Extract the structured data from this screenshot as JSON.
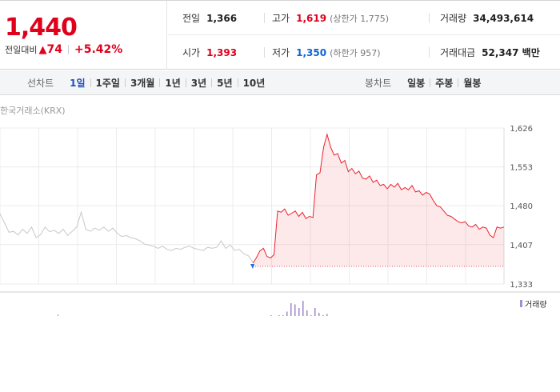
{
  "quote": {
    "price": "1,440",
    "change_label": "전일대비",
    "change_value": "74",
    "change_rate": "+5.42%",
    "up_color": "#e0001b",
    "down_color": "#1064d4"
  },
  "info": {
    "prev_close_label": "전일",
    "prev_close": "1,366",
    "high_label": "고가",
    "high": "1,619",
    "upper_limit": "(상한가 1,775)",
    "volume_label": "거래량",
    "volume": "34,493,614",
    "open_label": "시가",
    "open": "1,393",
    "low_label": "저가",
    "low": "1,350",
    "lower_limit": "(하한가 957)",
    "value_label": "거래대금",
    "value": "52,347 백만"
  },
  "line_tabs": {
    "title": "선차트",
    "items": [
      "1일",
      "1주일",
      "3개월",
      "1년",
      "3년",
      "5년",
      "10년"
    ],
    "active": "1일"
  },
  "candle_tabs": {
    "title": "봉차트",
    "items": [
      "일봉",
      "주봉",
      "월봉"
    ]
  },
  "source_label": "한국거래소(KRX)",
  "volume_legend": "거래량",
  "chart_data": {
    "type": "line",
    "ylim": [
      1333,
      1626
    ],
    "yticks": [
      1333,
      1407,
      1480,
      1553,
      1626
    ],
    "ytick_labels": [
      "1,333",
      "1,407",
      "1,480",
      "1,553",
      "1,626"
    ],
    "baseline": 1366,
    "series": [
      {
        "previous_session_values": [
          1465,
          1448,
          1430,
          1432,
          1425,
          1436,
          1428,
          1440,
          1420,
          1426,
          1440,
          1431,
          1434,
          1428,
          1436,
          1424,
          1432,
          1440,
          1468,
          1436,
          1432,
          1438,
          1434,
          1440,
          1432,
          1438,
          1428,
          1422,
          1424,
          1420,
          1418,
          1414,
          1408,
          1406,
          1404,
          1400,
          1404,
          1398,
          1396,
          1400,
          1398,
          1402,
          1404,
          1400,
          1398,
          1396,
          1402,
          1400,
          1402,
          1414,
          1400,
          1406,
          1396,
          1398,
          1390,
          1386,
          1374
        ],
        "today_values": [
          1372,
          1382,
          1395,
          1400,
          1385,
          1382,
          1388,
          1470,
          1468,
          1474,
          1462,
          1466,
          1470,
          1460,
          1468,
          1456,
          1460,
          1458,
          1538,
          1542,
          1590,
          1614,
          1590,
          1575,
          1578,
          1560,
          1565,
          1544,
          1550,
          1540,
          1545,
          1532,
          1530,
          1536,
          1524,
          1528,
          1518,
          1520,
          1512,
          1520,
          1515,
          1522,
          1510,
          1514,
          1510,
          1518,
          1506,
          1508,
          1500,
          1505,
          1502,
          1490,
          1480,
          1478,
          1470,
          1462,
          1460,
          1455,
          1450,
          1448,
          1450,
          1442,
          1440,
          1445,
          1436,
          1440,
          1438,
          1425,
          1420,
          1440,
          1438,
          1440
        ]
      }
    ],
    "volume_peaks": [
      0.1,
      0.05,
      0.1,
      0.1,
      0.25,
      0.6,
      0.55,
      0.4,
      0.7,
      0.3,
      0.1,
      0.4,
      0.2,
      0.1,
      0.15
    ]
  }
}
